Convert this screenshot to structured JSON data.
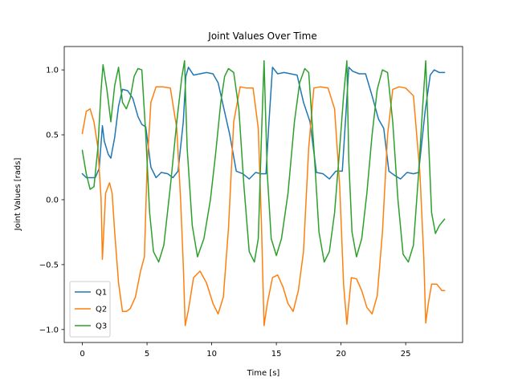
{
  "chart_data": {
    "type": "line",
    "title": "Joint Values Over Time",
    "xlabel": "Time [s]",
    "ylabel": "Joint Values [rads]",
    "xlim": [
      -1.4,
      29.4
    ],
    "ylim": [
      -1.1,
      1.18
    ],
    "xticks": [
      0,
      5,
      10,
      15,
      20,
      25
    ],
    "yticks": [
      -1.0,
      -0.5,
      0.0,
      0.5,
      1.0
    ],
    "xtick_labels": [
      "0",
      "5",
      "10",
      "15",
      "20",
      "25"
    ],
    "ytick_labels": [
      "−1.0",
      "−0.5",
      "0.0",
      "0.5",
      "1.0"
    ],
    "grid": false,
    "legend_position": "lower-left",
    "series": [
      {
        "name": "Q1",
        "color": "#1f77b4",
        "x": [
          0,
          0.3,
          0.6,
          1.0,
          1.3,
          1.55,
          1.7,
          2.0,
          2.2,
          2.5,
          2.8,
          3.1,
          3.5,
          3.9,
          4.3,
          4.6,
          4.9,
          5.3,
          5.7,
          6.1,
          6.6,
          7.0,
          7.4,
          7.8,
          8.0,
          8.2,
          8.6,
          9.1,
          9.6,
          10.1,
          10.5,
          10.9,
          11.4,
          11.9,
          12.4,
          12.9,
          13.4,
          13.8,
          14.2,
          14.4,
          14.7,
          15.1,
          15.6,
          16.1,
          16.6,
          17.1,
          17.6,
          18.1,
          18.6,
          19.1,
          19.6,
          20.1,
          20.4,
          20.6,
          20.9,
          21.4,
          21.9,
          22.4,
          22.9,
          23.3,
          23.7,
          24.1,
          24.6,
          25.1,
          25.6,
          26.0,
          26.5,
          26.9,
          27.2,
          27.6,
          28.0
        ],
        "y": [
          0.2,
          0.17,
          0.17,
          0.17,
          0.24,
          0.57,
          0.45,
          0.35,
          0.32,
          0.48,
          0.72,
          0.85,
          0.84,
          0.78,
          0.64,
          0.58,
          0.56,
          0.25,
          0.17,
          0.21,
          0.2,
          0.17,
          0.22,
          0.6,
          0.95,
          1.02,
          0.96,
          0.97,
          0.98,
          0.97,
          0.9,
          0.72,
          0.5,
          0.22,
          0.2,
          0.16,
          0.21,
          0.2,
          0.2,
          0.55,
          1.02,
          0.97,
          0.98,
          0.97,
          0.96,
          0.75,
          0.6,
          0.21,
          0.2,
          0.16,
          0.22,
          0.22,
          0.7,
          1.02,
          0.99,
          0.97,
          0.97,
          0.8,
          0.62,
          0.55,
          0.22,
          0.19,
          0.16,
          0.21,
          0.2,
          0.21,
          0.68,
          0.96,
          1.0,
          0.98,
          0.98
        ]
      },
      {
        "name": "Q2",
        "color": "#ff7f0e",
        "x": [
          0,
          0.3,
          0.6,
          0.9,
          1.2,
          1.45,
          1.55,
          1.8,
          2.1,
          2.3,
          2.5,
          2.8,
          3.1,
          3.4,
          3.7,
          4.1,
          4.5,
          4.8,
          5.0,
          5.3,
          5.7,
          6.2,
          6.8,
          7.3,
          7.6,
          7.8,
          7.95,
          8.2,
          8.6,
          9.1,
          9.6,
          10.1,
          10.5,
          10.9,
          11.3,
          11.7,
          12.2,
          12.7,
          13.2,
          13.6,
          13.85,
          14.05,
          14.3,
          14.7,
          15.1,
          15.5,
          15.9,
          16.3,
          16.7,
          17.1,
          17.5,
          17.9,
          18.4,
          19.0,
          19.5,
          19.9,
          20.2,
          20.45,
          20.6,
          20.8,
          21.2,
          21.6,
          22.0,
          22.4,
          22.8,
          23.2,
          23.6,
          24.0,
          24.5,
          25.0,
          25.6,
          26.1,
          26.4,
          26.55,
          26.75,
          27.0,
          27.4,
          27.8,
          28.0
        ],
        "y": [
          0.51,
          0.68,
          0.7,
          0.6,
          0.4,
          0.0,
          -0.46,
          0.05,
          0.13,
          0.05,
          -0.25,
          -0.64,
          -0.86,
          -0.86,
          -0.84,
          -0.75,
          -0.55,
          -0.44,
          0.25,
          0.75,
          0.87,
          0.87,
          0.86,
          0.55,
          0.0,
          -0.5,
          -0.97,
          -0.85,
          -0.6,
          -0.55,
          -0.64,
          -0.8,
          -0.88,
          -0.75,
          -0.22,
          0.6,
          0.87,
          0.86,
          0.86,
          0.55,
          -0.2,
          -0.97,
          -0.8,
          -0.6,
          -0.58,
          -0.67,
          -0.8,
          -0.86,
          -0.7,
          -0.4,
          0.4,
          0.86,
          0.87,
          0.86,
          0.7,
          0.1,
          -0.65,
          -0.96,
          -0.8,
          -0.6,
          -0.61,
          -0.7,
          -0.83,
          -0.88,
          -0.74,
          -0.25,
          0.5,
          0.85,
          0.87,
          0.86,
          0.8,
          0.2,
          -0.45,
          -0.95,
          -0.8,
          -0.65,
          -0.65,
          -0.7,
          -0.7
        ]
      },
      {
        "name": "Q3",
        "color": "#2ca02c",
        "x": [
          0,
          0.3,
          0.6,
          0.9,
          1.2,
          1.45,
          1.6,
          1.9,
          2.2,
          2.5,
          2.8,
          3.1,
          3.4,
          3.7,
          4.0,
          4.3,
          4.6,
          4.9,
          5.2,
          5.5,
          5.9,
          6.3,
          6.8,
          7.3,
          7.7,
          7.9,
          8.1,
          8.5,
          8.9,
          9.4,
          9.9,
          10.3,
          10.7,
          11.0,
          11.3,
          11.7,
          12.1,
          12.5,
          12.9,
          13.3,
          13.6,
          13.85,
          14.05,
          14.3,
          14.6,
          15.0,
          15.4,
          15.9,
          16.4,
          16.8,
          17.2,
          17.5,
          17.9,
          18.3,
          18.7,
          19.1,
          19.5,
          19.9,
          20.2,
          20.45,
          20.6,
          20.85,
          21.2,
          21.6,
          22.0,
          22.4,
          22.8,
          23.2,
          23.6,
          24.0,
          24.4,
          24.8,
          25.2,
          25.6,
          26.0,
          26.3,
          26.55,
          26.75,
          27.0,
          27.3,
          27.6,
          28.0
        ],
        "y": [
          0.38,
          0.2,
          0.08,
          0.1,
          0.4,
          0.85,
          1.04,
          0.85,
          0.6,
          0.88,
          1.02,
          0.75,
          0.7,
          0.78,
          0.95,
          1.01,
          1.0,
          0.5,
          -0.1,
          -0.4,
          -0.48,
          -0.35,
          0.1,
          0.6,
          0.95,
          1.07,
          0.4,
          -0.2,
          -0.44,
          -0.3,
          0.0,
          0.35,
          0.75,
          0.95,
          1.01,
          0.98,
          0.7,
          0.1,
          -0.4,
          -0.48,
          -0.3,
          0.5,
          1.07,
          0.2,
          -0.3,
          -0.43,
          -0.3,
          0.05,
          0.6,
          0.9,
          1.01,
          0.98,
          0.4,
          -0.25,
          -0.48,
          -0.4,
          -0.1,
          0.4,
          0.8,
          1.07,
          0.3,
          -0.25,
          -0.44,
          -0.3,
          0.05,
          0.5,
          0.85,
          1.0,
          0.98,
          0.6,
          0.0,
          -0.42,
          -0.48,
          -0.35,
          0.2,
          0.7,
          1.07,
          0.5,
          -0.1,
          -0.26,
          -0.2,
          -0.15
        ]
      }
    ]
  }
}
